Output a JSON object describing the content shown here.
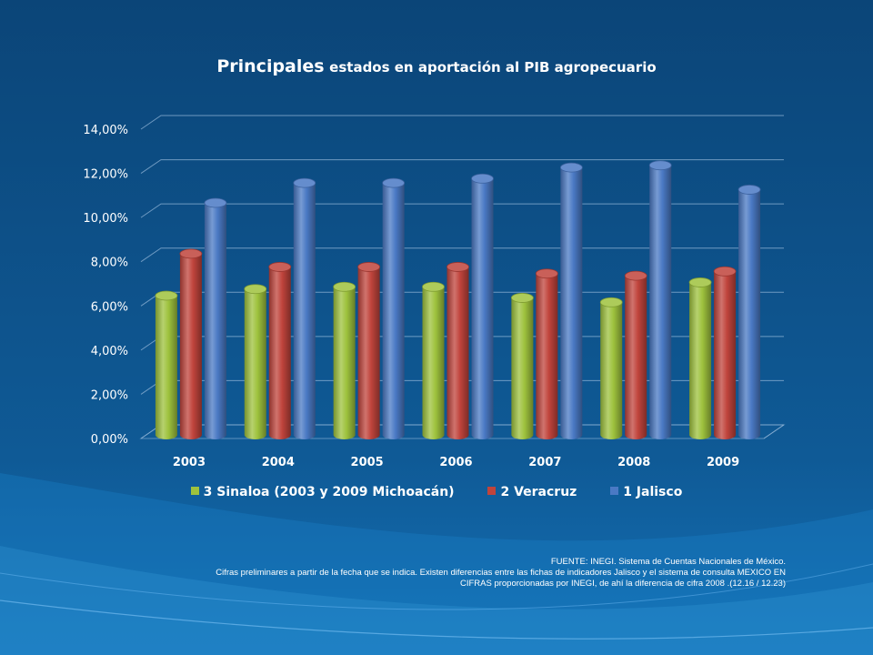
{
  "chart_data": {
    "type": "bar",
    "title_part1": "Principales",
    "title_part2": "estados en aportación al PIB agropecuario",
    "categories": [
      "2003",
      "2004",
      "2005",
      "2006",
      "2007",
      "2008",
      "2009"
    ],
    "series": [
      {
        "name": "3 Sinaloa (2003 y 2009 Michoacán)",
        "color": "#9ec23d",
        "values": [
          6.3,
          6.6,
          6.7,
          6.7,
          6.2,
          6.0,
          6.9
        ]
      },
      {
        "name": "2 Veracruz",
        "color": "#c0443c",
        "values": [
          8.2,
          7.6,
          7.6,
          7.6,
          7.3,
          7.2,
          7.4
        ]
      },
      {
        "name": "1 Jalisco",
        "color": "#4a79c4",
        "values": [
          10.5,
          11.4,
          11.4,
          11.6,
          12.1,
          12.2,
          11.1
        ]
      }
    ],
    "yticks": [
      "0,00%",
      "2,00%",
      "4,00%",
      "6,00%",
      "8,00%",
      "10,00%",
      "12,00%",
      "14,00%"
    ],
    "ylim": [
      0,
      14
    ],
    "grid": true,
    "legend_position": "bottom"
  },
  "source_note": {
    "line1": "FUENTE: INEGI. Sistema de Cuentas Nacionales de México.",
    "line2": "Cifras preliminares a partir de la fecha que se indica. Existen diferencias entre las fichas de indicadores Jalisco y el sistema de consulta  MEXICO EN",
    "line3": "CIFRAS  proporcionadas por INEGI, de ahí  la diferencia de cifra 2008 .(12.16  / 12.23)"
  }
}
